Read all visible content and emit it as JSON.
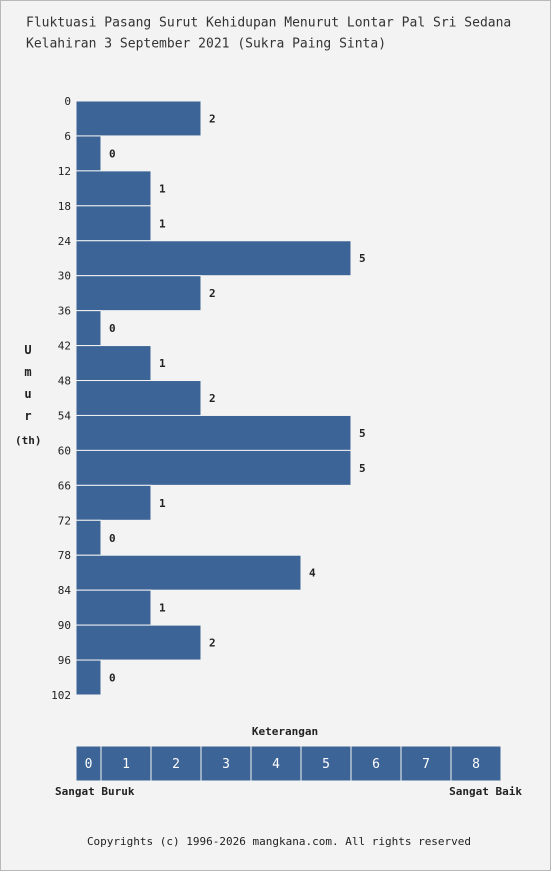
{
  "chart_data": {
    "type": "histogram",
    "orientation": "horizontal",
    "title": "Fluktuasi Pasang Surut Kehidupan Menurut Lontar Pal Sri Sedana",
    "subtitle": "Kelahiran 3 September 2021 (Sukra Paing Sinta)",
    "ylabel": "Umur",
    "ylabel_unit": "(th)",
    "bins": [
      0,
      6,
      12,
      18,
      24,
      30,
      36,
      42,
      48,
      54,
      60,
      66,
      72,
      78,
      84,
      90,
      96,
      102
    ],
    "values": [
      2,
      0,
      1,
      1,
      5,
      2,
      0,
      1,
      2,
      5,
      5,
      1,
      0,
      4,
      1,
      2,
      0
    ],
    "color": "#3d6496",
    "ylim": [
      0,
      102
    ],
    "yticks": [
      0,
      6,
      12,
      18,
      24,
      30,
      36,
      42,
      48,
      54,
      60,
      66,
      72,
      78,
      84,
      90,
      96,
      102
    ],
    "xlim": [
      -0.5,
      8
    ],
    "xticks": [
      0,
      1,
      2,
      3,
      4,
      5,
      6,
      7,
      8
    ],
    "legend": {
      "title": "Keterangan",
      "low_label": "Sangat Buruk",
      "high_label": "Sangat Baik"
    },
    "footer": "Copyrights (c) 1996-2026 mangkana.com. All rights reserved"
  }
}
